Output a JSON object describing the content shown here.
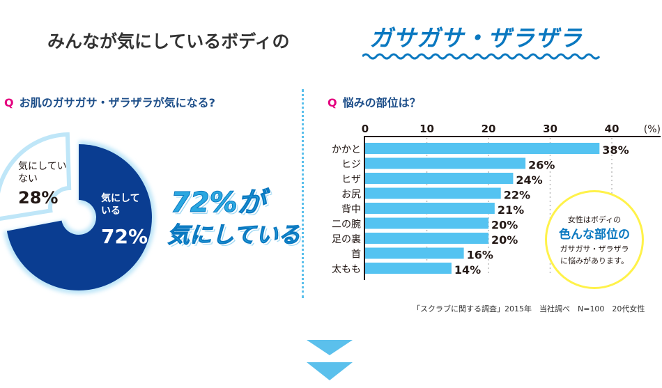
{
  "header": {
    "title_main": "みんなが気にしているボディの",
    "title_highlight": "ガサガサ・ザラザラ"
  },
  "left": {
    "q_mark": "Q",
    "question": "お肌のガサガサ・ザラザラが気になる?",
    "callout_line1": "72%が",
    "callout_line2": "気にしている"
  },
  "right": {
    "q_mark": "Q",
    "question": "悩みの部位は？",
    "bubble": {
      "line1": "女性はボディの",
      "line2": "色んな部位の",
      "line3": "ガサガサ・ザラザラ",
      "line4": "に悩みがあります。"
    },
    "note": "「スクラブに関する調査」2015年　当社調べ　N=100　20代女性"
  },
  "chart_data": [
    {
      "type": "pie",
      "donut": true,
      "slices": [
        {
          "label": "気にしている",
          "value": 72,
          "value_label": "72%",
          "color": "#0a3d91"
        },
        {
          "label": "気にしていない",
          "value": 28,
          "value_label": "28%",
          "color": "#ffffff"
        }
      ]
    },
    {
      "type": "bar",
      "orientation": "horizontal",
      "unit_label": "(%)",
      "categories": [
        "かかと",
        "ヒジ",
        "ヒザ",
        "お尻",
        "背中",
        "二の腕",
        "足の裏",
        "首",
        "太もも"
      ],
      "values": [
        38,
        26,
        24,
        22,
        21,
        20,
        20,
        16,
        14
      ],
      "value_labels": [
        "38%",
        "26%",
        "24%",
        "22%",
        "21%",
        "20%",
        "20%",
        "16%",
        "14%"
      ],
      "xticks": [
        "0",
        "10",
        "20",
        "30",
        "40"
      ],
      "xlim": [
        0,
        40
      ],
      "grid": true,
      "color": "#54c3f1"
    }
  ]
}
